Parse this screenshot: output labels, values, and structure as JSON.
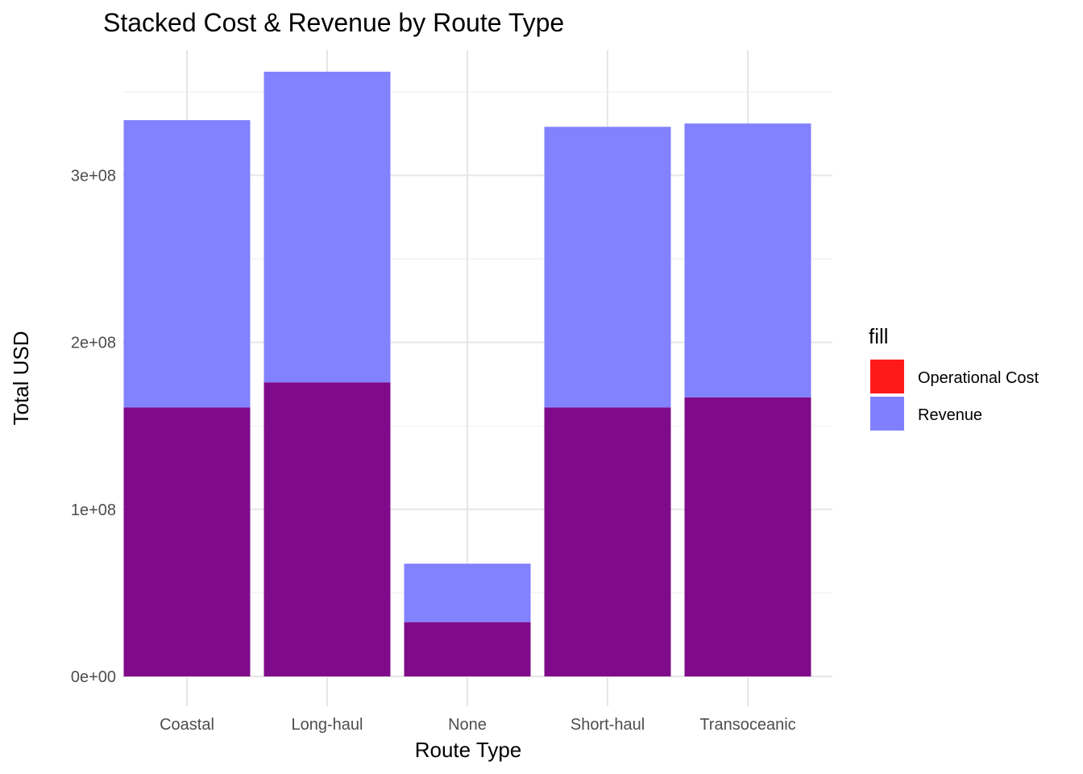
{
  "chart_data": {
    "type": "bar",
    "stacking": "overlay",
    "title": "Stacked Cost & Revenue by Route Type",
    "xlabel": "Route Type",
    "ylabel": "Total USD",
    "categories": [
      "Coastal",
      "Long-haul",
      "None",
      "Short-haul",
      "Transoceanic"
    ],
    "series": [
      {
        "name": "Revenue",
        "color": "#8080ff",
        "values": [
          333000000,
          362000000,
          67500000,
          329000000,
          331000000
        ]
      },
      {
        "name": "Operational Cost",
        "color": "#ff1a1a",
        "values": [
          161000000,
          176000000,
          32500000,
          161000000,
          167000000
        ]
      }
    ],
    "overlap_color": "#800b8a",
    "ylim": [
      0,
      375000000
    ],
    "yticks": [
      0,
      100000000,
      200000000,
      300000000
    ],
    "ytick_labels": [
      "0e+00",
      "1e+08",
      "2e+08",
      "3e+08"
    ],
    "grid": true,
    "legend": {
      "title": "fill",
      "position": "right",
      "entries": [
        {
          "label": "Operational Cost",
          "color": "#ff1a1a"
        },
        {
          "label": "Revenue",
          "color": "#8080ff"
        }
      ]
    }
  }
}
